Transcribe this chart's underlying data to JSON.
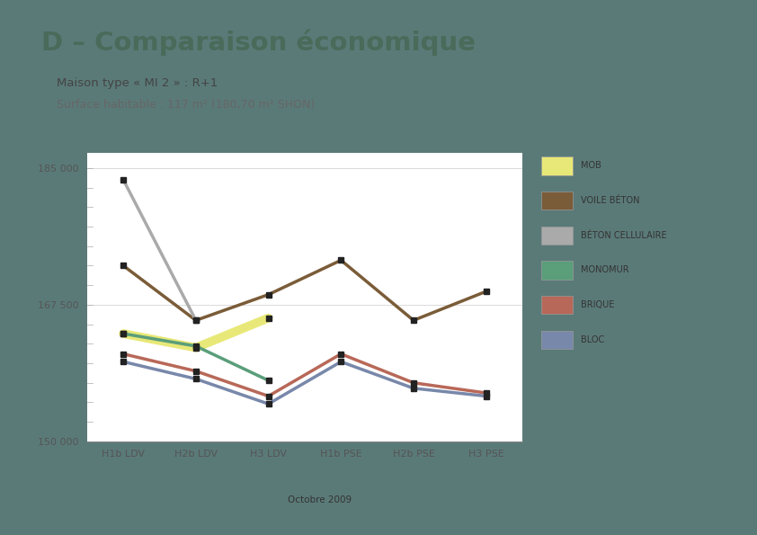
{
  "title": "D – Comparaison économique",
  "subtitle1": "Maison type « MI 2 » : R+1",
  "subtitle2": "Surface habitable : 117 m² (180,70 m² SHON)",
  "x_labels": [
    "H1b LDV",
    "H2b LDV",
    "H3 LDV",
    "H1b PSE",
    "H2b PSE",
    "H3 PSE"
  ],
  "ylim": [
    150000,
    187000
  ],
  "yticks": [
    150000,
    167500,
    185000
  ],
  "series": [
    {
      "name": "MOB",
      "color": "#e8e878",
      "linewidth": 7,
      "values": [
        163800,
        162000,
        165800,
        null,
        null,
        null
      ]
    },
    {
      "name": "VOILE BÉTON",
      "color": "#7a5c38",
      "linewidth": 2.5,
      "values": [
        172500,
        165500,
        168800,
        173200,
        165500,
        169200
      ]
    },
    {
      "name": "BÉTON CELLULAIRE",
      "color": "#aaaaaa",
      "linewidth": 2.5,
      "values": [
        183500,
        165500,
        null,
        null,
        null,
        null
      ]
    },
    {
      "name": "MONOMUR",
      "color": "#5a9e7a",
      "linewidth": 2.5,
      "values": [
        163800,
        162200,
        157800,
        null,
        null,
        null
      ]
    },
    {
      "name": "BRIQUE",
      "color": "#b86858",
      "linewidth": 2.5,
      "values": [
        161200,
        159000,
        155800,
        161200,
        157500,
        156200
      ]
    },
    {
      "name": "BLOC",
      "color": "#7888aa",
      "linewidth": 2.5,
      "values": [
        160200,
        158000,
        154800,
        160200,
        156800,
        155800
      ]
    }
  ],
  "outer_bg": "#5a7a78",
  "inner_bg": "#ffffff",
  "footer_bg": "#c8d4dc",
  "title_color": "#4a6a5a",
  "subtitle_color": "#444444",
  "subtitle2_color": "#666666",
  "axis_label_color": "#555555",
  "tick_label_color": "#555555",
  "marker": "s",
  "marker_color": "#222222",
  "marker_size": 4,
  "legend_items": [
    {
      "name": "MOB",
      "color": "#e8e878"
    },
    {
      "name": "VOILE BÉTON",
      "color": "#7a5c38"
    },
    {
      "name": "BÉTON CELLULAIRE",
      "color": "#aaaaaa"
    },
    {
      "name": "MONOMUR",
      "color": "#5a9e7a"
    },
    {
      "name": "BRIQUE",
      "color": "#b86858"
    },
    {
      "name": "BLOC",
      "color": "#7888aa"
    }
  ]
}
